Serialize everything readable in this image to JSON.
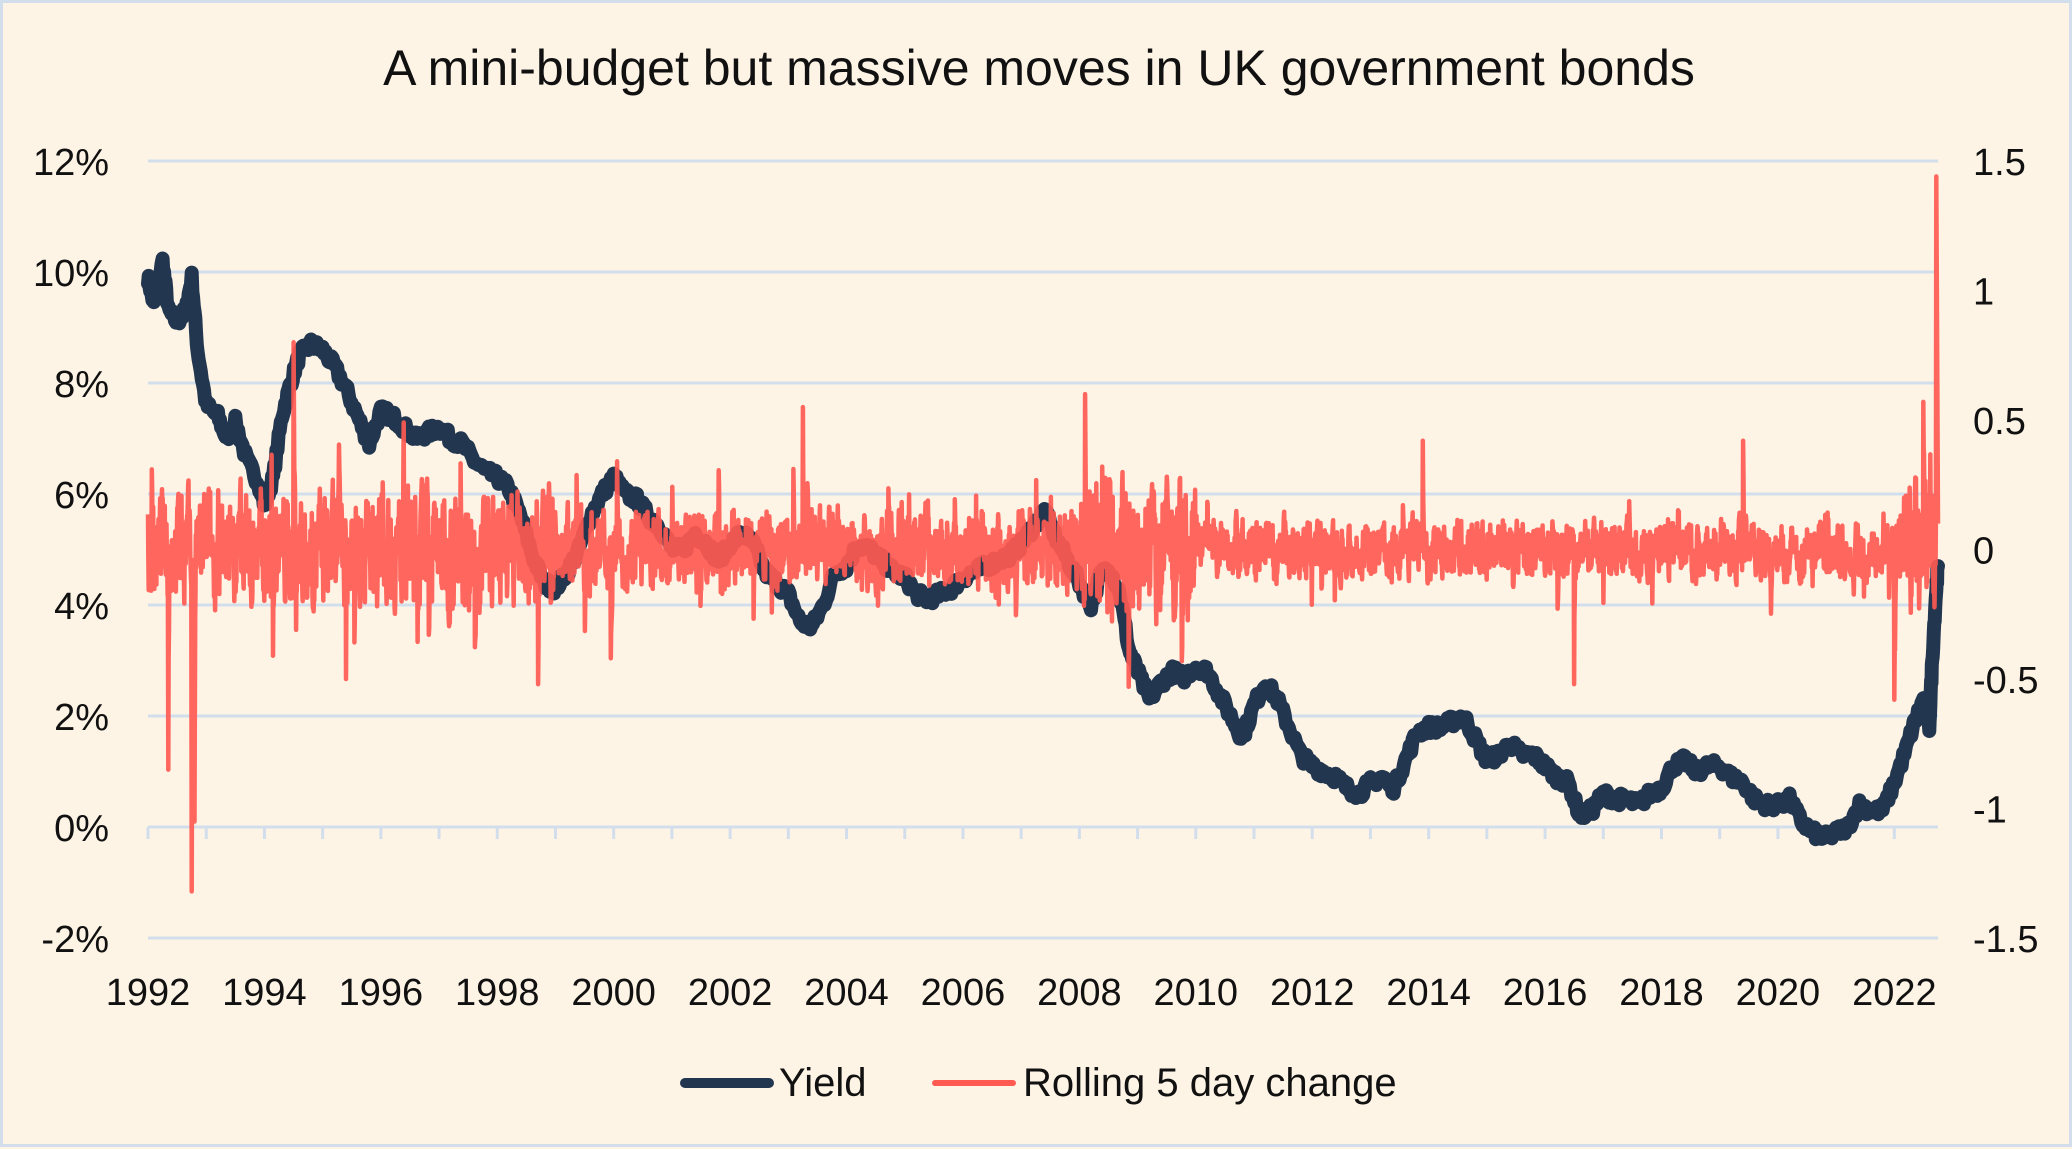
{
  "chart_data": {
    "type": "line",
    "title": "A mini-budget but massive moves in UK government bonds",
    "xlabel": "",
    "ylabel_left": "",
    "ylabel_right": "",
    "x_range": [
      1992,
      2022.75
    ],
    "x_ticks": [
      "1992",
      "1994",
      "1996",
      "1998",
      "2000",
      "2002",
      "2004",
      "2006",
      "2008",
      "2010",
      "2012",
      "2014",
      "2016",
      "2018",
      "2020",
      "2022"
    ],
    "y_left": {
      "range": [
        -2,
        12
      ],
      "ticks": [
        "-2%",
        "0%",
        "2%",
        "4%",
        "6%",
        "8%",
        "10%",
        "12%"
      ],
      "tick_values": [
        -2,
        0,
        2,
        4,
        6,
        8,
        10,
        12
      ]
    },
    "y_right": {
      "range": [
        -1.5,
        1.5
      ],
      "ticks": [
        "-1.5",
        "-1",
        "-0.5",
        "0",
        "0.5",
        "1",
        "1.5"
      ],
      "tick_values": [
        -1.5,
        -1,
        -0.5,
        0,
        0.5,
        1,
        1.5
      ]
    },
    "grid": true,
    "legend_position": "bottom",
    "series": [
      {
        "name": "Yield",
        "axis": "left",
        "color": "#22374f",
        "points": [
          [
            1992.0,
            9.9
          ],
          [
            1992.1,
            9.4
          ],
          [
            1992.25,
            10.2
          ],
          [
            1992.35,
            9.3
          ],
          [
            1992.5,
            9.1
          ],
          [
            1992.65,
            9.3
          ],
          [
            1992.75,
            9.9
          ],
          [
            1992.85,
            8.6
          ],
          [
            1993.0,
            7.6
          ],
          [
            1993.2,
            7.4
          ],
          [
            1993.35,
            7.0
          ],
          [
            1993.5,
            7.3
          ],
          [
            1993.7,
            6.6
          ],
          [
            1993.9,
            6.2
          ],
          [
            1994.0,
            5.8
          ],
          [
            1994.15,
            6.3
          ],
          [
            1994.3,
            7.4
          ],
          [
            1994.45,
            8.0
          ],
          [
            1994.6,
            8.5
          ],
          [
            1994.8,
            8.7
          ],
          [
            1995.0,
            8.6
          ],
          [
            1995.2,
            8.3
          ],
          [
            1995.4,
            7.9
          ],
          [
            1995.6,
            7.4
          ],
          [
            1995.8,
            6.9
          ],
          [
            1996.0,
            7.5
          ],
          [
            1996.2,
            7.4
          ],
          [
            1996.4,
            7.2
          ],
          [
            1996.6,
            7.0
          ],
          [
            1996.8,
            7.1
          ],
          [
            1997.0,
            7.2
          ],
          [
            1997.2,
            7.0
          ],
          [
            1997.4,
            6.9
          ],
          [
            1997.6,
            6.6
          ],
          [
            1997.8,
            6.4
          ],
          [
            1998.0,
            6.3
          ],
          [
            1998.2,
            6.1
          ],
          [
            1998.4,
            5.6
          ],
          [
            1998.6,
            4.9
          ],
          [
            1998.8,
            4.4
          ],
          [
            1999.0,
            4.3
          ],
          [
            1999.2,
            4.6
          ],
          [
            1999.4,
            5.0
          ],
          [
            1999.6,
            5.6
          ],
          [
            1999.8,
            6.0
          ],
          [
            2000.0,
            6.3
          ],
          [
            2000.2,
            6.0
          ],
          [
            2000.4,
            5.9
          ],
          [
            2000.6,
            5.6
          ],
          [
            2000.8,
            5.4
          ],
          [
            2001.0,
            5.0
          ],
          [
            2001.2,
            5.0
          ],
          [
            2001.4,
            5.3
          ],
          [
            2001.6,
            5.1
          ],
          [
            2001.8,
            4.8
          ],
          [
            2002.0,
            5.1
          ],
          [
            2002.2,
            5.3
          ],
          [
            2002.4,
            5.1
          ],
          [
            2002.6,
            4.6
          ],
          [
            2002.8,
            4.4
          ],
          [
            2003.0,
            4.2
          ],
          [
            2003.2,
            3.7
          ],
          [
            2003.4,
            3.6
          ],
          [
            2003.6,
            4.0
          ],
          [
            2003.8,
            4.6
          ],
          [
            2004.0,
            4.7
          ],
          [
            2004.2,
            5.1
          ],
          [
            2004.4,
            5.0
          ],
          [
            2004.6,
            4.8
          ],
          [
            2004.8,
            4.6
          ],
          [
            2005.0,
            4.5
          ],
          [
            2005.2,
            4.2
          ],
          [
            2005.4,
            4.1
          ],
          [
            2005.6,
            4.2
          ],
          [
            2005.8,
            4.3
          ],
          [
            2006.0,
            4.5
          ],
          [
            2006.2,
            4.6
          ],
          [
            2006.4,
            4.7
          ],
          [
            2006.6,
            4.8
          ],
          [
            2006.8,
            4.9
          ],
          [
            2007.0,
            5.1
          ],
          [
            2007.2,
            5.4
          ],
          [
            2007.4,
            5.7
          ],
          [
            2007.6,
            5.2
          ],
          [
            2007.8,
            4.8
          ],
          [
            2008.0,
            4.4
          ],
          [
            2008.2,
            4.0
          ],
          [
            2008.35,
            4.5
          ],
          [
            2008.5,
            4.7
          ],
          [
            2008.7,
            4.2
          ],
          [
            2008.85,
            3.2
          ],
          [
            2009.0,
            2.8
          ],
          [
            2009.2,
            2.3
          ],
          [
            2009.4,
            2.6
          ],
          [
            2009.6,
            2.8
          ],
          [
            2009.8,
            2.7
          ],
          [
            2010.0,
            2.9
          ],
          [
            2010.2,
            2.8
          ],
          [
            2010.4,
            2.4
          ],
          [
            2010.6,
            2.0
          ],
          [
            2010.8,
            1.6
          ],
          [
            2011.0,
            2.2
          ],
          [
            2011.2,
            2.6
          ],
          [
            2011.4,
            2.3
          ],
          [
            2011.6,
            1.8
          ],
          [
            2011.8,
            1.3
          ],
          [
            2012.0,
            1.1
          ],
          [
            2012.2,
            1.0
          ],
          [
            2012.4,
            0.9
          ],
          [
            2012.6,
            0.7
          ],
          [
            2012.8,
            0.6
          ],
          [
            2013.0,
            0.8
          ],
          [
            2013.2,
            0.9
          ],
          [
            2013.4,
            0.7
          ],
          [
            2013.6,
            1.2
          ],
          [
            2013.8,
            1.7
          ],
          [
            2014.0,
            1.8
          ],
          [
            2014.2,
            1.8
          ],
          [
            2014.4,
            1.9
          ],
          [
            2014.6,
            2.0
          ],
          [
            2014.8,
            1.6
          ],
          [
            2015.0,
            1.2
          ],
          [
            2015.2,
            1.3
          ],
          [
            2015.4,
            1.5
          ],
          [
            2015.6,
            1.3
          ],
          [
            2015.8,
            1.3
          ],
          [
            2016.0,
            1.1
          ],
          [
            2016.2,
            0.9
          ],
          [
            2016.4,
            0.8
          ],
          [
            2016.6,
            0.2
          ],
          [
            2016.8,
            0.3
          ],
          [
            2017.0,
            0.6
          ],
          [
            2017.2,
            0.5
          ],
          [
            2017.4,
            0.5
          ],
          [
            2017.6,
            0.4
          ],
          [
            2017.8,
            0.6
          ],
          [
            2018.0,
            0.7
          ],
          [
            2018.2,
            1.1
          ],
          [
            2018.4,
            1.2
          ],
          [
            2018.6,
            1.0
          ],
          [
            2018.8,
            1.1
          ],
          [
            2019.0,
            1.1
          ],
          [
            2019.2,
            0.9
          ],
          [
            2019.4,
            0.8
          ],
          [
            2019.6,
            0.5
          ],
          [
            2019.8,
            0.4
          ],
          [
            2020.0,
            0.4
          ],
          [
            2020.2,
            0.5
          ],
          [
            2020.4,
            0.1
          ],
          [
            2020.6,
            -0.1
          ],
          [
            2020.8,
            -0.2
          ],
          [
            2021.0,
            -0.1
          ],
          [
            2021.2,
            0.0
          ],
          [
            2021.4,
            0.4
          ],
          [
            2021.6,
            0.3
          ],
          [
            2021.8,
            0.3
          ],
          [
            2022.0,
            0.8
          ],
          [
            2022.2,
            1.4
          ],
          [
            2022.35,
            1.9
          ],
          [
            2022.5,
            2.3
          ],
          [
            2022.6,
            1.8
          ],
          [
            2022.65,
            3.0
          ],
          [
            2022.72,
            4.3
          ],
          [
            2022.75,
            4.7
          ]
        ]
      },
      {
        "name": "Rolling 5 day change",
        "axis": "right",
        "color": "#ff5a52",
        "notable_points": [
          [
            1992.35,
            -0.85
          ],
          [
            1992.75,
            -1.32
          ],
          [
            1992.8,
            -1.05
          ],
          [
            1994.5,
            0.8
          ],
          [
            1995.4,
            -0.5
          ],
          [
            1998.7,
            -0.52
          ],
          [
            1999.95,
            -0.42
          ],
          [
            2003.25,
            0.55
          ],
          [
            2008.1,
            0.6
          ],
          [
            2008.85,
            -0.53
          ],
          [
            2013.9,
            0.42
          ],
          [
            2016.5,
            -0.52
          ],
          [
            2019.4,
            0.42
          ],
          [
            2022.0,
            -0.58
          ],
          [
            2022.5,
            0.57
          ],
          [
            2022.72,
            1.44
          ]
        ]
      }
    ]
  },
  "legend": {
    "items": [
      {
        "label": "Yield",
        "color": "#22374f"
      },
      {
        "label": "Rolling 5 day change",
        "color": "#ff5a52"
      }
    ]
  }
}
